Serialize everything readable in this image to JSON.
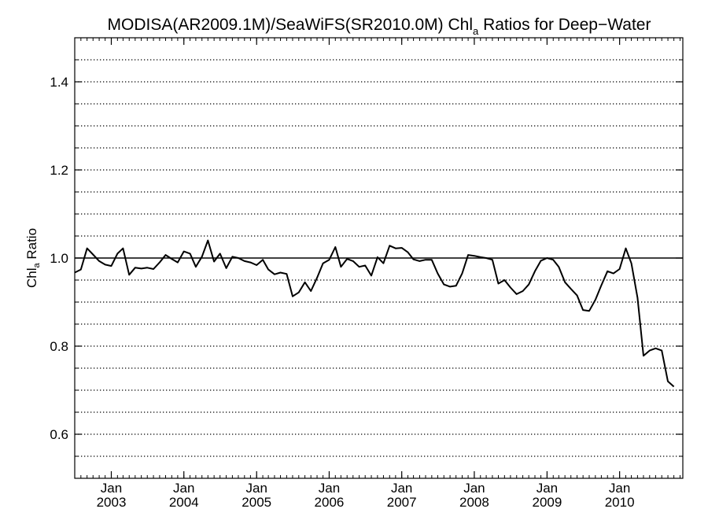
{
  "chart_data": {
    "type": "line",
    "title": {
      "main": "MODISA(AR2009.1M)/SeaWiFS(SR2010.0M)  Chl",
      "subscript": "a",
      "rest": " Ratios for Deep−Water"
    },
    "ylabel": {
      "main": "Chl",
      "subscript": "a",
      "rest": " Ratio"
    },
    "xlabel": "",
    "ylim": [
      0.5,
      1.5
    ],
    "xlim": [
      "2002-07-01",
      "2010-11-15"
    ],
    "y_ticks": [
      {
        "value": 0.6,
        "label": "0.6"
      },
      {
        "value": 0.8,
        "label": "0.8"
      },
      {
        "value": 1.0,
        "label": "1.0"
      },
      {
        "value": 1.2,
        "label": "1.2"
      },
      {
        "value": 1.4,
        "label": "1.4"
      }
    ],
    "y_minor_step": 0.05,
    "x_ticks": [
      {
        "date": "2003-01-01",
        "month_label": "Jan",
        "year_label": "2003"
      },
      {
        "date": "2004-01-01",
        "month_label": "Jan",
        "year_label": "2004"
      },
      {
        "date": "2005-01-01",
        "month_label": "Jan",
        "year_label": "2005"
      },
      {
        "date": "2006-01-01",
        "month_label": "Jan",
        "year_label": "2006"
      },
      {
        "date": "2007-01-01",
        "month_label": "Jan",
        "year_label": "2007"
      },
      {
        "date": "2008-01-01",
        "month_label": "Jan",
        "year_label": "2008"
      },
      {
        "date": "2009-01-01",
        "month_label": "Jan",
        "year_label": "2009"
      },
      {
        "date": "2010-01-01",
        "month_label": "Jan",
        "year_label": "2010"
      }
    ],
    "grid": "horizontal-dotted",
    "reference_line": 1.0,
    "series": [
      {
        "color": "#000000",
        "points": [
          [
            "2002-07-01",
            0.967
          ],
          [
            "2002-08-01",
            0.974
          ],
          [
            "2002-09-01",
            1.022
          ],
          [
            "2002-10-01",
            1.008
          ],
          [
            "2002-11-01",
            0.993
          ],
          [
            "2002-12-01",
            0.985
          ],
          [
            "2003-01-01",
            0.982
          ],
          [
            "2003-02-01",
            1.01
          ],
          [
            "2003-03-01",
            1.022
          ],
          [
            "2003-04-01",
            0.962
          ],
          [
            "2003-05-01",
            0.978
          ],
          [
            "2003-06-01",
            0.976
          ],
          [
            "2003-07-01",
            0.978
          ],
          [
            "2003-08-01",
            0.975
          ],
          [
            "2003-09-01",
            0.99
          ],
          [
            "2003-10-01",
            1.007
          ],
          [
            "2003-11-01",
            0.998
          ],
          [
            "2003-12-01",
            0.99
          ],
          [
            "2004-01-01",
            1.015
          ],
          [
            "2004-02-01",
            1.01
          ],
          [
            "2004-03-01",
            0.98
          ],
          [
            "2004-04-01",
            1.003
          ],
          [
            "2004-05-01",
            1.04
          ],
          [
            "2004-06-01",
            0.992
          ],
          [
            "2004-07-01",
            1.01
          ],
          [
            "2004-08-01",
            0.977
          ],
          [
            "2004-09-01",
            1.003
          ],
          [
            "2004-10-01",
            1.0
          ],
          [
            "2004-11-01",
            0.993
          ],
          [
            "2004-12-01",
            0.99
          ],
          [
            "2005-01-01",
            0.984
          ],
          [
            "2005-02-01",
            0.996
          ],
          [
            "2005-03-01",
            0.974
          ],
          [
            "2005-04-01",
            0.963
          ],
          [
            "2005-05-01",
            0.967
          ],
          [
            "2005-06-01",
            0.964
          ],
          [
            "2005-07-01",
            0.913
          ],
          [
            "2005-08-01",
            0.922
          ],
          [
            "2005-09-01",
            0.945
          ],
          [
            "2005-10-01",
            0.925
          ],
          [
            "2005-11-01",
            0.955
          ],
          [
            "2005-12-01",
            0.988
          ],
          [
            "2006-01-01",
            0.996
          ],
          [
            "2006-02-01",
            1.025
          ],
          [
            "2006-03-01",
            0.98
          ],
          [
            "2006-04-01",
            0.998
          ],
          [
            "2006-05-01",
            0.993
          ],
          [
            "2006-06-01",
            0.98
          ],
          [
            "2006-07-01",
            0.983
          ],
          [
            "2006-08-01",
            0.96
          ],
          [
            "2006-09-01",
            1.002
          ],
          [
            "2006-10-01",
            0.988
          ],
          [
            "2006-11-01",
            1.028
          ],
          [
            "2006-12-01",
            1.022
          ],
          [
            "2007-01-01",
            1.023
          ],
          [
            "2007-02-01",
            1.013
          ],
          [
            "2007-03-01",
            0.997
          ],
          [
            "2007-04-01",
            0.993
          ],
          [
            "2007-05-01",
            0.996
          ],
          [
            "2007-06-01",
            0.996
          ],
          [
            "2007-07-01",
            0.965
          ],
          [
            "2007-08-01",
            0.94
          ],
          [
            "2007-09-01",
            0.935
          ],
          [
            "2007-10-01",
            0.937
          ],
          [
            "2007-11-01",
            0.965
          ],
          [
            "2007-12-01",
            1.007
          ],
          [
            "2008-01-01",
            1.005
          ],
          [
            "2008-02-01",
            1.002
          ],
          [
            "2008-03-01",
            1.0
          ],
          [
            "2008-04-01",
            0.996
          ],
          [
            "2008-05-01",
            0.942
          ],
          [
            "2008-06-01",
            0.95
          ],
          [
            "2008-07-01",
            0.933
          ],
          [
            "2008-08-01",
            0.918
          ],
          [
            "2008-09-01",
            0.925
          ],
          [
            "2008-10-01",
            0.94
          ],
          [
            "2008-11-01",
            0.97
          ],
          [
            "2008-12-01",
            0.994
          ],
          [
            "2009-01-01",
            1.0
          ],
          [
            "2009-02-01",
            0.996
          ],
          [
            "2009-03-01",
            0.98
          ],
          [
            "2009-04-01",
            0.945
          ],
          [
            "2009-05-01",
            0.93
          ],
          [
            "2009-06-01",
            0.915
          ],
          [
            "2009-07-01",
            0.882
          ],
          [
            "2009-08-01",
            0.88
          ],
          [
            "2009-09-01",
            0.905
          ],
          [
            "2009-10-01",
            0.938
          ],
          [
            "2009-11-01",
            0.97
          ],
          [
            "2009-12-01",
            0.965
          ],
          [
            "2010-01-01",
            0.975
          ],
          [
            "2010-02-01",
            1.022
          ],
          [
            "2010-03-01",
            0.988
          ],
          [
            "2010-04-01",
            0.91
          ],
          [
            "2010-05-01",
            0.778
          ],
          [
            "2010-06-01",
            0.79
          ],
          [
            "2010-07-01",
            0.795
          ],
          [
            "2010-08-01",
            0.79
          ],
          [
            "2010-09-01",
            0.72
          ],
          [
            "2010-10-01",
            0.708
          ]
        ]
      }
    ]
  }
}
